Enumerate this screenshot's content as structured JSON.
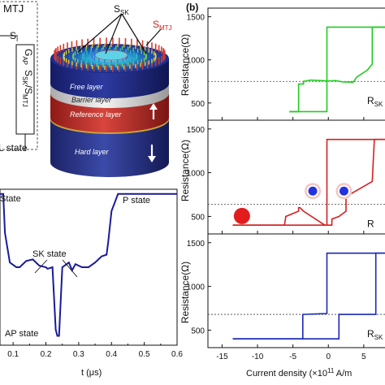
{
  "panel_a": {
    "circuit": {
      "mtj_label": "MTJ",
      "s_label": "S",
      "s_sub": "I",
      "g_label": "G",
      "g_sub": "AP",
      "s2_label": "S",
      "s2_sub": "SK",
      "s3_label": "/S",
      "s3_sub": "MTJ",
      "state_label": "L state"
    },
    "stack": {
      "free_layer": "Free layer",
      "barrier_layer": "Barrier layer",
      "reference_layer": "Reference layer",
      "hard_layer": "Hard layer",
      "s_sk_label": "S",
      "s_sk_sub": "SK",
      "s_mtj_label": "S",
      "s_mtj_sub": "MTJ",
      "colors": {
        "free": "#1e2a8c",
        "barrier": "#d9d9d9",
        "reference": "#c0302b",
        "hard": "#23307e",
        "top_skyrmion": "#4ec6dc"
      }
    }
  },
  "panel_b_label": "(b)",
  "chart_data": [
    {
      "id": "time-trace",
      "type": "line",
      "xlabel": "t (μs)",
      "xlim": [
        0.06,
        0.6
      ],
      "ylim": [
        0,
        1
      ],
      "xticks": [
        "0.1",
        "0.2",
        "0.3",
        "0.4",
        "0.5",
        "0.6"
      ],
      "color": "#1a1a9c",
      "annotations": {
        "top_left": "State",
        "p_state": "P state",
        "sk_state": "SK state",
        "ap_state": "AP state"
      },
      "series": [
        {
          "x": [
            0.06,
            0.07,
            0.075,
            0.09,
            0.11,
            0.12,
            0.14,
            0.16,
            0.18,
            0.2,
            0.205,
            0.22,
            0.23,
            0.235,
            0.24,
            0.25,
            0.27,
            0.28,
            0.29,
            0.31,
            0.33,
            0.35,
            0.37,
            0.385,
            0.39,
            0.4,
            0.42,
            0.5,
            0.6
          ],
          "y": [
            0.97,
            0.97,
            0.72,
            0.53,
            0.5,
            0.5,
            0.54,
            0.55,
            0.51,
            0.5,
            0.49,
            0.5,
            0.1,
            0.06,
            0.06,
            0.5,
            0.53,
            0.48,
            0.52,
            0.5,
            0.5,
            0.53,
            0.57,
            0.58,
            0.66,
            0.86,
            0.97,
            0.97,
            0.97
          ]
        }
      ]
    },
    {
      "id": "skyrmion-branch",
      "type": "line",
      "ylabel": "Resistance(Ω)",
      "yticks": [
        "500",
        "1000",
        "1500"
      ],
      "ylim": [
        300,
        1600
      ],
      "xlim": [
        -17,
        8
      ],
      "color": "#22cc22",
      "label": "R",
      "label_sub": "SK",
      "reference_level": 750,
      "series": [
        {
          "x": [
            -5.5,
            -0.2,
            -0.2,
            8
          ],
          "y": [
            400,
            400,
            1380,
            1380
          ]
        },
        {
          "x": [
            8,
            6.2,
            6.2,
            5.5,
            4,
            3.5,
            2,
            1,
            0,
            -2.5,
            -3.5,
            -3.5,
            -4.2,
            -4.2,
            -5.5
          ],
          "y": [
            1380,
            1380,
            950,
            880,
            800,
            740,
            745,
            760,
            755,
            765,
            750,
            720,
            720,
            400,
            400
          ]
        }
      ]
    },
    {
      "id": "mtj-branch",
      "type": "line",
      "ylabel": "Resistance(Ω)",
      "yticks": [
        "500",
        "1000",
        "1500"
      ],
      "ylim": [
        300,
        1600
      ],
      "xlim": [
        -17,
        8
      ],
      "color": "#d42020",
      "label": "R",
      "label_sub": "",
      "reference_level": 640,
      "series": [
        {
          "x": [
            -13.5,
            -0.2,
            -0.2,
            8
          ],
          "y": [
            400,
            400,
            1380,
            1380
          ]
        },
        {
          "x": [
            8,
            6.5,
            6.2,
            3,
            2.5,
            2.5,
            1.5,
            0.5,
            0.5,
            -0.5,
            -3.5,
            -4,
            -4.2,
            -4.2,
            -6,
            -6.2,
            -13.5
          ],
          "y": [
            1380,
            1380,
            900,
            750,
            720,
            560,
            500,
            470,
            400,
            400,
            560,
            600,
            600,
            560,
            500,
            400,
            400
          ]
        }
      ],
      "markers": [
        {
          "kind": "filled",
          "x": -12.2,
          "y": 505
        },
        {
          "kind": "skyrmion",
          "x": -2.2,
          "y": 790
        },
        {
          "kind": "skyrmion",
          "x": 2.2,
          "y": 790
        }
      ]
    },
    {
      "id": "sk-mtj-branch",
      "type": "line",
      "ylabel": "Resistance(Ω)",
      "yticks": [
        "500",
        "1000",
        "1500"
      ],
      "ylim": [
        300,
        1600
      ],
      "xlim": [
        -17,
        8
      ],
      "xlabel": "Current density (×10",
      "xlabel_sup": "11",
      "xlabel_tail": " A/m",
      "xticks": [
        "-15",
        "-10",
        "-5",
        "0",
        "5"
      ],
      "xtick_values": [
        -15,
        -10,
        -5,
        0,
        5
      ],
      "color": "#1a28b4",
      "label": "R",
      "label_sub": "SK",
      "reference_level": 680,
      "series": [
        {
          "x": [
            -13.5,
            -3.6,
            -3.6,
            -0.2,
            -0.2,
            3.5,
            3.5,
            8
          ],
          "y": [
            400,
            400,
            680,
            690,
            1380,
            1380,
            1380,
            1380
          ]
        },
        {
          "x": [
            8,
            6.7,
            6.7,
            4.2,
            4.2,
            1.5,
            1.5,
            -5.5,
            -5.5,
            -13.5
          ],
          "y": [
            1380,
            1380,
            680,
            680,
            680,
            680,
            400,
            400,
            400,
            400
          ]
        }
      ]
    }
  ]
}
